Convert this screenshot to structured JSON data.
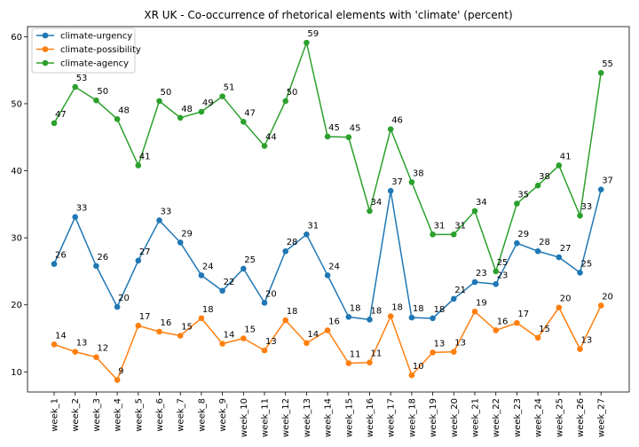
{
  "chart_data": {
    "type": "line",
    "title": "XR UK - Co-occurrence of rhetorical elements with 'climate' (percent)",
    "xlabel": "",
    "ylabel": "",
    "ylim": [
      7,
      61.5
    ],
    "yticks": [
      10,
      20,
      30,
      40,
      50,
      60
    ],
    "grid": false,
    "legend_position": "top-left",
    "categories": [
      "week_1",
      "week_2",
      "week_3",
      "week_4",
      "week_5",
      "week_6",
      "week_7",
      "week_8",
      "week_9",
      "week_10",
      "week_11",
      "week_12",
      "week_13",
      "week_14",
      "week_15",
      "week_16",
      "week_17",
      "week_18",
      "week_19",
      "week_20",
      "week_21",
      "week_22",
      "week_23",
      "week_24",
      "week_25",
      "week_26",
      "week_27"
    ],
    "series": [
      {
        "name": "climate-urgency",
        "color": "#1f77b4",
        "values": [
          26.1,
          33.1,
          25.8,
          19.7,
          26.6,
          32.6,
          29.3,
          24.4,
          22.1,
          25.4,
          20.3,
          28.0,
          30.5,
          24.4,
          18.2,
          17.8,
          37.0,
          18.1,
          18.0,
          20.9,
          23.4,
          23.1,
          29.2,
          28.0,
          27.1,
          24.8,
          37.2
        ],
        "labels": [
          "26",
          "33",
          "26",
          "20",
          "27",
          "33",
          "29",
          "24",
          "22",
          "25",
          "20",
          "28",
          "31",
          "24",
          "18",
          "18",
          "37",
          "18",
          "18",
          "21",
          "23",
          "23",
          "29",
          "28",
          "27",
          "25",
          "37"
        ]
      },
      {
        "name": "climate-possibility",
        "color": "#ff7f0e",
        "values": [
          14.1,
          13.0,
          12.2,
          8.8,
          16.9,
          16.0,
          15.4,
          18.0,
          14.2,
          15.0,
          13.2,
          17.7,
          14.3,
          16.2,
          11.3,
          11.4,
          18.3,
          9.5,
          12.9,
          13.0,
          19.0,
          16.2,
          17.3,
          15.1,
          19.6,
          13.4,
          19.9
        ],
        "labels": [
          "14",
          "13",
          "12",
          "9",
          "17",
          "16",
          "15",
          "18",
          "14",
          "15",
          "13",
          "18",
          "14",
          "16",
          "11",
          "11",
          "18",
          "10",
          "13",
          "13",
          "19",
          "16",
          "17",
          "15",
          "20",
          "13",
          "20"
        ]
      },
      {
        "name": "climate-agency",
        "color": "#2ca02c",
        "values": [
          47.1,
          52.5,
          50.5,
          47.7,
          40.8,
          50.4,
          47.9,
          48.8,
          51.1,
          47.3,
          43.7,
          50.4,
          59.1,
          45.1,
          45.0,
          34.0,
          46.2,
          38.3,
          30.5,
          30.5,
          34.0,
          25.0,
          35.1,
          37.8,
          40.8,
          33.3,
          54.6
        ],
        "labels": [
          "47",
          "53",
          "50",
          "48",
          "41",
          "50",
          "48",
          "49",
          "51",
          "47",
          "44",
          "50",
          "59",
          "45",
          "45",
          "34",
          "46",
          "38",
          "31",
          "31",
          "34",
          "25",
          "35",
          "38",
          "41",
          "33",
          "55"
        ]
      }
    ]
  }
}
